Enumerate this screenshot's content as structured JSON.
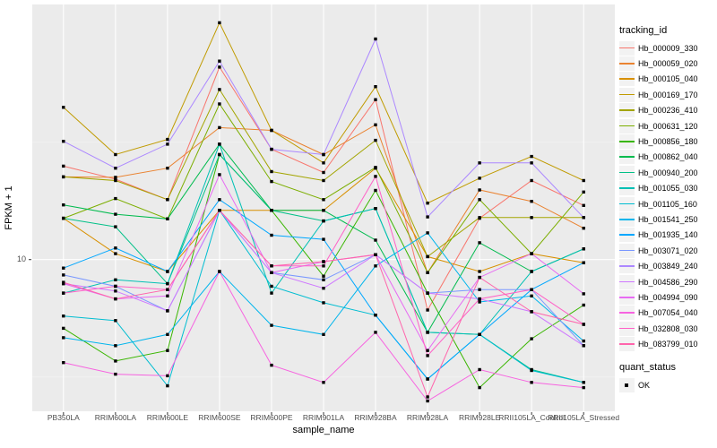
{
  "figure": {
    "x_axis": {
      "label": "sample_name",
      "tick_color": "#333333",
      "text_color": "#4d4d4d"
    },
    "y_axis": {
      "label": "FPKM + 1",
      "tick_labels": [
        "10"
      ]
    },
    "legend": {
      "tracking_title": "tracking_id",
      "quant_title": "quant_status",
      "quant_items": [
        {
          "label": "OK",
          "key": "black-square"
        }
      ]
    },
    "colors": {
      "panel_bg": "#EBEBEB",
      "grid_major": "#FFFFFF",
      "grid_minor": "rgba(255,255,255,0.45)",
      "point": "#000000",
      "legend_key_bg": "#F2F2F2"
    }
  },
  "chart_data": {
    "type": "line",
    "title": "",
    "xlabel": "sample_name",
    "ylabel": "FPKM + 1",
    "y_scale": "log10",
    "ylim": [
      2.26,
      122
    ],
    "y_major_breaks": [
      10
    ],
    "y_minor_breaks": [
      3.162,
      31.62
    ],
    "grid": true,
    "legend_position": "right",
    "point_shape": "filled-square",
    "point_size": 3.4,
    "quant_status": "OK",
    "categories": [
      "PB350LA",
      "RRIM600LA",
      "RRIM600LE",
      "RRIM600SE",
      "RRIM600PE",
      "RRIM901LA",
      "RRIM928BA",
      "RRIM928LA",
      "RRIM928LE",
      "RRII105LA_Control",
      "RRII105LA_Stressed"
    ],
    "series": [
      {
        "name": "Hb_000009_330",
        "color": "#F8766D",
        "values": [
          25,
          22,
          18,
          66,
          29.5,
          23.5,
          48,
          6.1,
          15,
          21.7,
          17
        ]
      },
      {
        "name": "Hb_000059_020",
        "color": "#EA8331",
        "values": [
          22.5,
          22.4,
          24.5,
          36.5,
          35.5,
          28,
          37.5,
          8.8,
          19.8,
          17.7,
          13.6
        ]
      },
      {
        "name": "Hb_000105_040",
        "color": "#D89000",
        "values": [
          15,
          10.6,
          8.9,
          16.2,
          16.2,
          16.2,
          24.5,
          10.3,
          8.9,
          10.6,
          9.7
        ]
      },
      {
        "name": "Hb_000169_170",
        "color": "#C09B00",
        "values": [
          44.5,
          28,
          32.5,
          102,
          35.5,
          25.8,
          54.5,
          17.4,
          22.2,
          27.5,
          21.7
        ]
      },
      {
        "name": "Hb_000236_410",
        "color": "#A3A500",
        "values": [
          22.5,
          21.7,
          18,
          53,
          23.7,
          21.7,
          32.2,
          10.3,
          15.1,
          15.1,
          15.1
        ]
      },
      {
        "name": "Hb_000631_120",
        "color": "#7CAE00",
        "values": [
          15,
          18.2,
          14.9,
          46,
          21.5,
          18,
          24.7,
          8.8,
          18,
          10.6,
          19.4
        ]
      },
      {
        "name": "Hb_000856_180",
        "color": "#39B600",
        "values": [
          5.1,
          3.7,
          4.1,
          28,
          16.2,
          8.5,
          19.7,
          7.2,
          2.85,
          4.6,
          6.4
        ]
      },
      {
        "name": "Hb_000862_040",
        "color": "#00BB4E",
        "values": [
          17.1,
          15.6,
          14.9,
          31,
          16.2,
          16.2,
          12.1,
          4.9,
          11.8,
          8.9,
          11.1
        ]
      },
      {
        "name": "Hb_000940_200",
        "color": "#00C087",
        "values": [
          15,
          13.8,
          7.9,
          28,
          16.2,
          14.6,
          16.5,
          4.9,
          4.8,
          3.4,
          3.0
        ]
      },
      {
        "name": "Hb_001055_030",
        "color": "#00C0B4",
        "values": [
          7.2,
          8.2,
          7.9,
          31,
          7.2,
          14.6,
          16.5,
          4.9,
          4.8,
          8.9,
          11.1
        ]
      },
      {
        "name": "Hb_001105_160",
        "color": "#00BDD1",
        "values": [
          5.75,
          5.5,
          2.9,
          16.2,
          7.7,
          6.55,
          5.8,
          3.1,
          4.8,
          3.37,
          3.0
        ]
      },
      {
        "name": "Hb_001541_250",
        "color": "#00B5EC",
        "values": [
          4.65,
          4.3,
          4.8,
          8.9,
          5.25,
          4.8,
          9.4,
          13,
          6.6,
          7.0,
          4.5
        ]
      },
      {
        "name": "Hb_001935_140",
        "color": "#00A7FF",
        "values": [
          9.2,
          11.2,
          8.9,
          18,
          12.7,
          12.2,
          5.8,
          3.1,
          4.8,
          7.45,
          9.7
        ]
      },
      {
        "name": "Hb_003071_020",
        "color": "#7997FF",
        "values": [
          8.6,
          7.7,
          6.05,
          16.2,
          8.8,
          8.2,
          10.5,
          7.2,
          7.45,
          7.45,
          4.3
        ]
      },
      {
        "name": "Hb_003849_240",
        "color": "#AC88FF",
        "values": [
          31.9,
          24.5,
          31,
          70,
          29.5,
          28,
          87,
          15.2,
          25.8,
          25.8,
          15.1
        ]
      },
      {
        "name": "Hb_004586_290",
        "color": "#CF78FF",
        "values": [
          7.9,
          7.35,
          6.05,
          16.2,
          8.8,
          7.55,
          10.5,
          7.2,
          6.8,
          6.0,
          4.3
        ]
      },
      {
        "name": "Hb_004994_090",
        "color": "#E76BF3",
        "values": [
          7.9,
          6.8,
          7.0,
          23,
          8.8,
          9.8,
          10.5,
          4.1,
          8.4,
          10.6,
          7.15
        ]
      },
      {
        "name": "Hb_007054_040",
        "color": "#F763E0",
        "values": [
          3.64,
          3.25,
          3.2,
          8.9,
          3.55,
          3.0,
          4.9,
          2.5,
          3.4,
          3.0,
          2.85
        ]
      },
      {
        "name": "Hb_032808_030",
        "color": "#FF61C7",
        "values": [
          7.2,
          7.7,
          7.45,
          16.2,
          9.4,
          9.4,
          22.6,
          3.9,
          6.8,
          7.45,
          5.3
        ]
      },
      {
        "name": "Hb_083799_010",
        "color": "#FF65AC",
        "values": [
          8.0,
          6.8,
          7.45,
          16.2,
          9.4,
          9.8,
          10.5,
          2.6,
          8.4,
          6.0,
          5.3
        ]
      }
    ]
  }
}
